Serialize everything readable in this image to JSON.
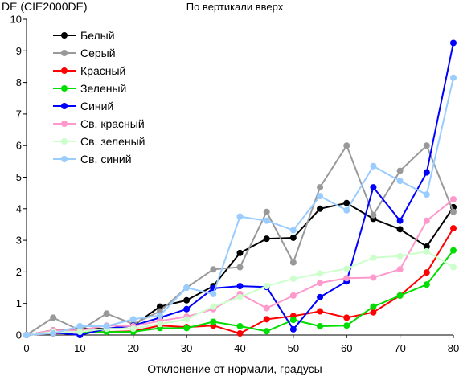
{
  "chart_data": {
    "type": "line",
    "title": "По вертикали вверх",
    "xlabel": "Отклонение от нормали, градусы",
    "ylabel": "DE (CIE2000DE)",
    "xlim": [
      0,
      80
    ],
    "ylim": [
      0,
      10
    ],
    "x_ticks": [
      0,
      10,
      20,
      30,
      40,
      50,
      60,
      70,
      80
    ],
    "y_ticks": [
      0,
      1,
      2,
      3,
      4,
      5,
      6,
      7,
      8,
      9,
      10
    ],
    "grid": false,
    "legend_position": "top-left",
    "x": [
      0,
      5,
      10,
      15,
      20,
      25,
      30,
      35,
      40,
      45,
      50,
      55,
      60,
      65,
      70,
      75,
      80
    ],
    "series": [
      {
        "name": "Белый",
        "color": "#000000",
        "values": [
          0,
          0.15,
          0.2,
          0.2,
          0.3,
          0.9,
          1.1,
          1.55,
          2.6,
          3.05,
          3.08,
          4.0,
          4.18,
          3.68,
          3.35,
          2.8,
          4.05
        ]
      },
      {
        "name": "Серый",
        "color": "#999999",
        "values": [
          0,
          0.55,
          0.15,
          0.68,
          0.35,
          0.75,
          1.5,
          2.08,
          2.15,
          3.9,
          2.3,
          4.68,
          6.0,
          3.8,
          5.2,
          6.0,
          3.9
        ]
      },
      {
        "name": "Красный",
        "color": "#ff0000",
        "values": [
          0,
          0.05,
          0.08,
          0.1,
          0.12,
          0.3,
          0.25,
          0.3,
          0.05,
          0.5,
          0.6,
          0.75,
          0.55,
          0.72,
          1.25,
          1.98,
          3.38
        ]
      },
      {
        "name": "Зеленый",
        "color": "#00dd00",
        "values": [
          0,
          0.08,
          0.08,
          0.1,
          0.1,
          0.22,
          0.22,
          0.42,
          0.28,
          0.12,
          0.48,
          0.28,
          0.3,
          0.9,
          1.25,
          1.6,
          2.68
        ]
      },
      {
        "name": "Синий",
        "color": "#0000ff",
        "values": [
          0,
          0.08,
          0.0,
          0.2,
          0.3,
          0.55,
          0.82,
          1.48,
          1.55,
          1.52,
          0.18,
          1.2,
          1.7,
          4.68,
          3.62,
          5.15,
          9.25
        ]
      },
      {
        "name": "Св. красный",
        "color": "#ff99cc",
        "values": [
          0,
          0.15,
          0.15,
          0.3,
          0.28,
          0.45,
          0.58,
          0.82,
          1.3,
          0.85,
          1.25,
          1.65,
          1.8,
          1.82,
          2.08,
          3.62,
          4.3
        ]
      },
      {
        "name": "Св. зеленый",
        "color": "#ccffcc",
        "values": [
          0,
          0.1,
          0.1,
          0.2,
          0.2,
          0.35,
          0.5,
          0.9,
          1.2,
          1.55,
          1.78,
          1.95,
          2.1,
          2.45,
          2.5,
          2.65,
          2.15
        ]
      },
      {
        "name": "Св. синий",
        "color": "#99ccff",
        "values": [
          0,
          0.05,
          0.28,
          0.28,
          0.5,
          0.62,
          1.5,
          1.3,
          3.75,
          3.62,
          3.32,
          4.4,
          3.95,
          5.35,
          4.88,
          4.45,
          8.15
        ]
      }
    ]
  }
}
